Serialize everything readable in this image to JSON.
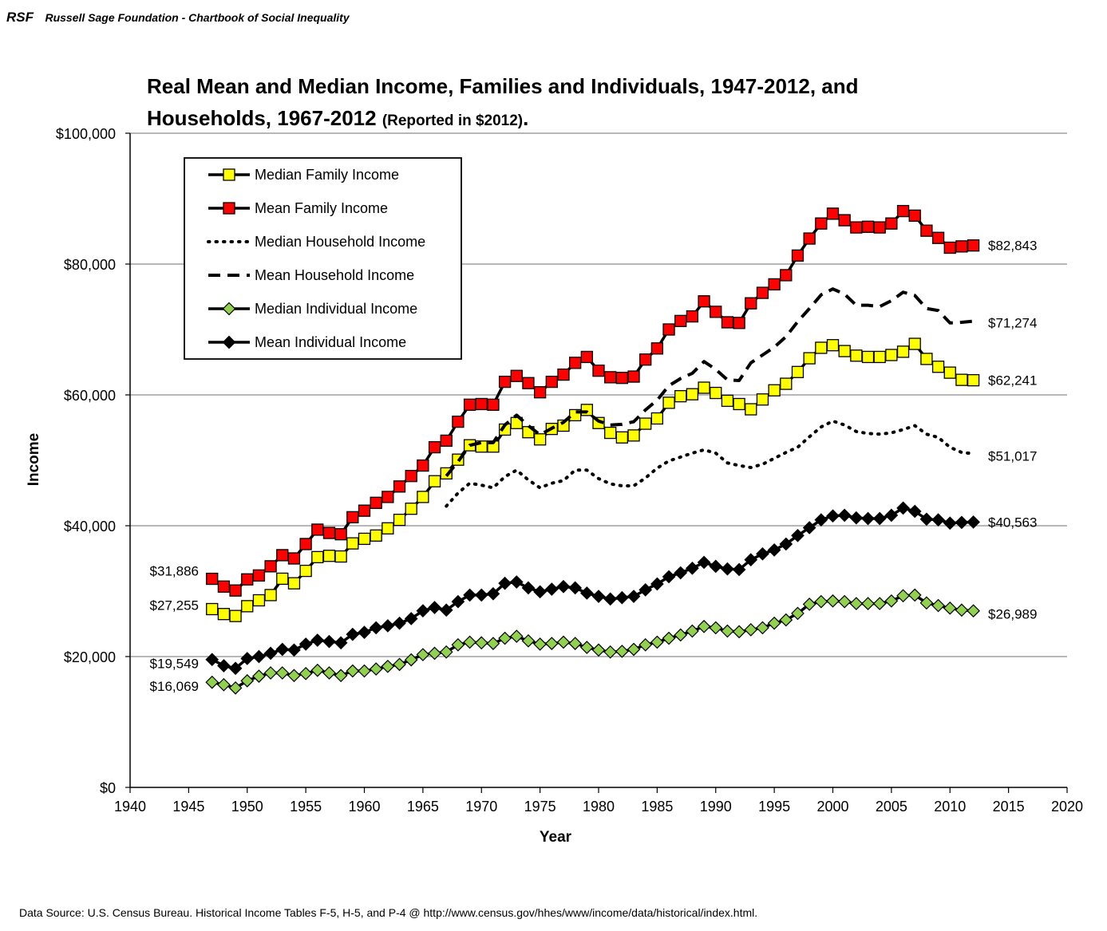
{
  "header": {
    "logo": "RSF",
    "org": "Russell Sage Foundation - Chartbook of Social Inequality"
  },
  "title": {
    "line1": "Real Mean and Median Income, Families and Individuals, 1947-2012, and",
    "line2": "Households, 1967-2012",
    "note": "(Reported in $2012)",
    "period": "."
  },
  "source": "Data Source: U.S. Census Bureau. Historical Income Tables F-5, H-5, and P-4 @ http://www.census.gov/hhes/www/income/data/historical/index.html.",
  "chart_data": {
    "type": "line",
    "xlabel": "Year",
    "ylabel": "Income",
    "xlim": [
      1940,
      2020
    ],
    "ylim": [
      0,
      100000
    ],
    "xticks": [
      1940,
      1945,
      1950,
      1955,
      1960,
      1965,
      1970,
      1975,
      1980,
      1985,
      1990,
      1995,
      2000,
      2005,
      2010,
      2015,
      2020
    ],
    "yticks": [
      0,
      20000,
      40000,
      60000,
      80000,
      100000
    ],
    "ytick_labels": [
      "$0",
      "$20,000",
      "$40,000",
      "$60,000",
      "$80,000",
      "$100,000"
    ],
    "legend_position": "top-left",
    "series": [
      {
        "name": "Median Family Income",
        "style": "solid-square",
        "color": "#ffff00",
        "start": 1947,
        "values": [
          27255,
          26500,
          26200,
          27700,
          28600,
          29400,
          31900,
          31200,
          33100,
          35200,
          35400,
          35300,
          37300,
          38000,
          38500,
          39600,
          40900,
          42600,
          44400,
          46800,
          48000,
          50100,
          52300,
          52100,
          52100,
          54700,
          55700,
          54300,
          53200,
          54800,
          55300,
          56900,
          57700,
          55700,
          54200,
          53500,
          53800,
          55600,
          56400,
          58800,
          59800,
          60100,
          61100,
          60300,
          59100,
          58600,
          57800,
          59300,
          60700,
          61700,
          63500,
          65600,
          67200,
          67600,
          66700,
          66000,
          65800,
          65800,
          66100,
          66600,
          67800,
          65500,
          64300,
          63400,
          62300,
          62241
        ]
      },
      {
        "name": "Mean Family Income",
        "style": "solid-square",
        "color": "#ff0000",
        "start": 1947,
        "values": [
          31886,
          30700,
          30100,
          31800,
          32400,
          33800,
          35500,
          35000,
          37200,
          39400,
          38900,
          38700,
          41300,
          42300,
          43500,
          44400,
          46000,
          47600,
          49200,
          52000,
          53000,
          55900,
          58500,
          58600,
          58500,
          62000,
          62900,
          61800,
          60400,
          62000,
          63100,
          64900,
          65800,
          63700,
          62700,
          62600,
          62800,
          65400,
          67100,
          70000,
          71300,
          72000,
          74300,
          72700,
          71100,
          71000,
          74000,
          75600,
          76900,
          78300,
          81300,
          83900,
          86200,
          87700,
          86700,
          85600,
          85700,
          85600,
          86200,
          88100,
          87400,
          85100,
          84000,
          82500,
          82700,
          82843
        ]
      },
      {
        "name": "Median Household Income",
        "style": "dotted",
        "start": 1967,
        "values": [
          43000,
          45000,
          46500,
          46200,
          45800,
          47500,
          48500,
          47000,
          45800,
          46500,
          46900,
          48500,
          48500,
          47200,
          46400,
          46100,
          46100,
          47300,
          48800,
          49900,
          50500,
          51100,
          51600,
          51100,
          49600,
          49200,
          48900,
          49400,
          50300,
          51200,
          52000,
          53600,
          55100,
          56000,
          55400,
          54400,
          54100,
          54000,
          54200,
          54700,
          55300,
          54000,
          53500,
          52000,
          51200,
          51017
        ]
      },
      {
        "name": "Mean Household Income",
        "style": "dashed",
        "start": 1967,
        "values": [
          47600,
          49800,
          52300,
          52700,
          52700,
          55400,
          56900,
          55300,
          53900,
          54900,
          55800,
          57400,
          57400,
          56000,
          55400,
          55500,
          55900,
          57700,
          59200,
          61400,
          62500,
          63300,
          65100,
          63900,
          62300,
          62200,
          64900,
          66100,
          67300,
          68900,
          71200,
          73200,
          75300,
          76200,
          75400,
          73700,
          73700,
          73500,
          74400,
          75700,
          75200,
          73200,
          72900,
          71000,
          71100,
          71274
        ]
      },
      {
        "name": "Median Individual Income",
        "style": "solid-diamond",
        "color": "#92d050",
        "start": 1947,
        "values": [
          16069,
          15700,
          15200,
          16300,
          17000,
          17500,
          17500,
          17100,
          17400,
          17900,
          17500,
          17100,
          17800,
          17800,
          18100,
          18500,
          18800,
          19500,
          20300,
          20500,
          20700,
          21800,
          22200,
          22100,
          22000,
          22800,
          23100,
          22400,
          21900,
          22000,
          22200,
          22000,
          21400,
          21000,
          20700,
          20800,
          21100,
          21800,
          22200,
          22800,
          23300,
          23900,
          24600,
          24400,
          23900,
          23800,
          24100,
          24400,
          25100,
          25600,
          26600,
          28000,
          28400,
          28500,
          28400,
          28100,
          28100,
          28100,
          28500,
          29300,
          29400,
          28200,
          27800,
          27400,
          27100,
          26989
        ]
      },
      {
        "name": "Mean Individual Income",
        "style": "solid-diamond",
        "color": "#000000",
        "start": 1947,
        "values": [
          19549,
          18600,
          18200,
          19700,
          20000,
          20500,
          21100,
          21000,
          21900,
          22500,
          22300,
          22100,
          23400,
          23700,
          24400,
          24700,
          25100,
          25800,
          27000,
          27500,
          27100,
          28400,
          29400,
          29400,
          29600,
          31200,
          31400,
          30500,
          29900,
          30300,
          30700,
          30500,
          29700,
          29200,
          28800,
          29000,
          29200,
          30200,
          31100,
          32200,
          32800,
          33500,
          34400,
          33800,
          33400,
          33300,
          34800,
          35700,
          36300,
          37200,
          38500,
          39700,
          40900,
          41500,
          41600,
          41200,
          41100,
          41100,
          41600,
          42700,
          42200,
          41000,
          40900,
          40400,
          40500,
          40563
        ]
      }
    ],
    "end_labels": [
      "$82,843",
      "$71,274",
      "$62,241",
      "$51,017",
      "$40,563",
      "$26,989"
    ],
    "start_labels": [
      "$31,886",
      "$27,255",
      "$19,549",
      "$16,069"
    ]
  }
}
